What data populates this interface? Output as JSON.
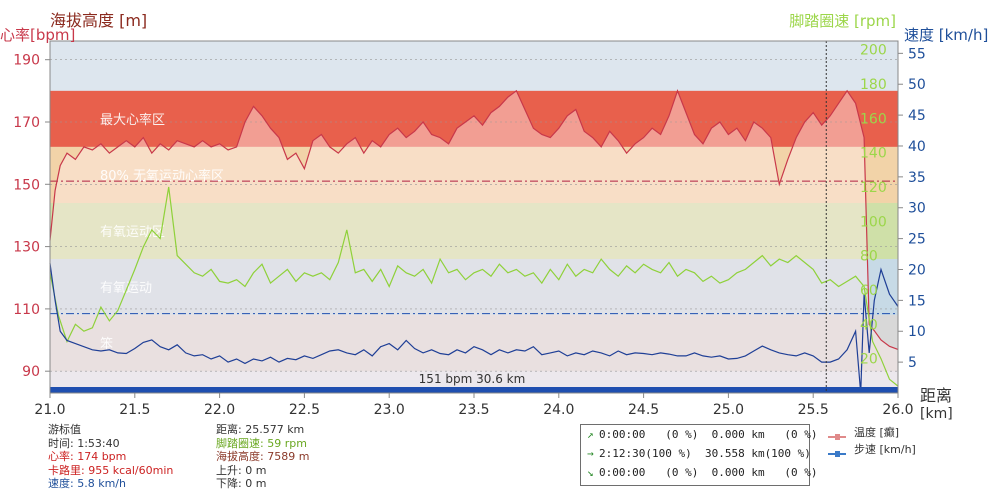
{
  "chart_data": {
    "type": "area",
    "axes": {
      "top_left_title": "海拔高度 [m]",
      "left_title": "心率[bpm]",
      "right_title_cadence": "脚踏圈速 [rpm]",
      "right_title_speed": "速度 [km/h]",
      "x_title": "距离",
      "x_unit": "[km]",
      "heart_rate_ticks": [
        "190",
        "170",
        "150",
        "130",
        "110",
        "90"
      ],
      "cadence_ticks": [
        "200",
        "180",
        "160",
        "140",
        "120",
        "100",
        "80",
        "60",
        "40",
        "20"
      ],
      "speed_ticks": [
        "55",
        "50",
        "45",
        "40",
        "35",
        "30",
        "25",
        "20",
        "15",
        "10",
        "5"
      ],
      "x_ticks": [
        "21.0",
        "21.5",
        "22.0",
        "22.5",
        "23.0",
        "23.5",
        "24.0",
        "24.5",
        "25.0",
        "25.5",
        "26.0"
      ],
      "x_range": [
        21.0,
        26.0
      ],
      "heart_rate_range": [
        83,
        196
      ],
      "cadence_range": [
        0,
        205
      ],
      "speed_range": [
        0,
        57
      ]
    },
    "zones": [
      {
        "label": "最大心率区",
        "from": 162,
        "to": 180,
        "color": "#e8604c"
      },
      {
        "label": "80% 无氧运动心率区",
        "from": 144,
        "to": 162,
        "color": "#f2d3a8"
      },
      {
        "label": "有氧运动区",
        "from": 126,
        "to": 144,
        "color": "#cfe0a8"
      },
      {
        "label": "有氧运动",
        "from": 108,
        "to": 126,
        "color": "#c7dae6"
      },
      {
        "label": "笨",
        "from": 90,
        "to": 108,
        "color": "#d8d8d8"
      }
    ],
    "heart_rate_line": 151,
    "heart_rate_line2": 108.5,
    "cursor_x": 25.577,
    "cursor_label": "151 bpm 30.6 km",
    "heart_rate": {
      "x": [
        21.0,
        21.03,
        21.06,
        21.1,
        21.15,
        21.2,
        21.25,
        21.3,
        21.35,
        21.4,
        21.45,
        21.5,
        21.55,
        21.6,
        21.65,
        21.7,
        21.75,
        21.8,
        21.85,
        21.9,
        21.95,
        22.0,
        22.05,
        22.1,
        22.15,
        22.2,
        22.25,
        22.3,
        22.35,
        22.4,
        22.45,
        22.5,
        22.55,
        22.6,
        22.65,
        22.7,
        22.75,
        22.8,
        22.85,
        22.9,
        22.95,
        23.0,
        23.05,
        23.1,
        23.15,
        23.2,
        23.25,
        23.3,
        23.35,
        23.4,
        23.45,
        23.5,
        23.55,
        23.6,
        23.65,
        23.7,
        23.75,
        23.8,
        23.85,
        23.9,
        23.95,
        24.0,
        24.05,
        24.1,
        24.15,
        24.2,
        24.25,
        24.3,
        24.35,
        24.4,
        24.45,
        24.5,
        24.55,
        24.6,
        24.65,
        24.7,
        24.75,
        24.8,
        24.85,
        24.9,
        24.95,
        25.0,
        25.05,
        25.1,
        25.15,
        25.2,
        25.25,
        25.3,
        25.35,
        25.4,
        25.45,
        25.5,
        25.55,
        25.6,
        25.65,
        25.7,
        25.75,
        25.8,
        25.83,
        25.86,
        25.9,
        25.95,
        26.0
      ],
      "values": [
        132,
        148,
        156,
        160,
        158,
        162,
        161,
        163,
        160,
        162,
        164,
        162,
        165,
        160,
        163,
        161,
        164,
        163,
        162,
        164,
        162,
        163,
        161,
        162,
        170,
        175,
        172,
        168,
        165,
        158,
        160,
        155,
        164,
        166,
        162,
        160,
        163,
        165,
        160,
        164,
        162,
        166,
        168,
        165,
        167,
        170,
        166,
        165,
        163,
        168,
        170,
        172,
        169,
        173,
        175,
        178,
        180,
        174,
        168,
        166,
        165,
        168,
        172,
        174,
        167,
        165,
        162,
        167,
        164,
        160,
        163,
        165,
        168,
        166,
        172,
        180,
        173,
        166,
        163,
        168,
        170,
        166,
        168,
        164,
        170,
        168,
        165,
        150,
        158,
        165,
        170,
        173,
        169,
        172,
        176,
        180,
        176,
        165,
        105,
        103,
        100,
        98,
        97
      ]
    },
    "cadence": {
      "x": [
        21.0,
        21.05,
        21.1,
        21.15,
        21.2,
        21.25,
        21.3,
        21.35,
        21.4,
        21.45,
        21.5,
        21.55,
        21.6,
        21.65,
        21.7,
        21.75,
        21.8,
        21.85,
        21.9,
        21.95,
        22.0,
        22.05,
        22.1,
        22.15,
        22.2,
        22.25,
        22.3,
        22.35,
        22.4,
        22.45,
        22.5,
        22.55,
        22.6,
        22.65,
        22.7,
        22.75,
        22.8,
        22.85,
        22.9,
        22.95,
        23.0,
        23.05,
        23.1,
        23.15,
        23.2,
        23.25,
        23.3,
        23.35,
        23.4,
        23.45,
        23.5,
        23.55,
        23.6,
        23.65,
        23.7,
        23.75,
        23.8,
        23.85,
        23.9,
        23.95,
        24.0,
        24.05,
        24.1,
        24.15,
        24.2,
        24.25,
        24.3,
        24.35,
        24.4,
        24.45,
        24.5,
        24.55,
        24.6,
        24.65,
        24.7,
        24.75,
        24.8,
        24.85,
        24.9,
        24.95,
        25.0,
        25.05,
        25.1,
        25.15,
        25.2,
        25.25,
        25.3,
        25.35,
        25.4,
        25.45,
        25.5,
        25.55,
        25.6,
        25.65,
        25.7,
        25.75,
        25.8,
        25.85,
        25.9,
        25.95,
        26.0
      ],
      "values": [
        70,
        45,
        30,
        40,
        36,
        38,
        50,
        42,
        48,
        60,
        72,
        85,
        95,
        90,
        120,
        80,
        75,
        70,
        68,
        72,
        65,
        64,
        66,
        62,
        70,
        75,
        64,
        68,
        72,
        65,
        70,
        68,
        70,
        66,
        76,
        95,
        70,
        72,
        65,
        72,
        62,
        74,
        70,
        68,
        72,
        64,
        78,
        70,
        72,
        66,
        70,
        72,
        68,
        75,
        70,
        72,
        68,
        70,
        64,
        72,
        66,
        75,
        68,
        72,
        70,
        78,
        72,
        68,
        74,
        70,
        75,
        72,
        70,
        76,
        68,
        72,
        70,
        65,
        68,
        64,
        66,
        70,
        72,
        76,
        80,
        74,
        78,
        76,
        80,
        76,
        72,
        64,
        66,
        62,
        65,
        68,
        62,
        30,
        20,
        8,
        4
      ]
    },
    "speed": {
      "x": [
        21.0,
        21.03,
        21.06,
        21.1,
        21.15,
        21.2,
        21.25,
        21.3,
        21.35,
        21.4,
        21.45,
        21.5,
        21.55,
        21.6,
        21.65,
        21.7,
        21.75,
        21.8,
        21.85,
        21.9,
        21.95,
        22.0,
        22.05,
        22.1,
        22.15,
        22.2,
        22.25,
        22.3,
        22.35,
        22.4,
        22.45,
        22.5,
        22.55,
        22.6,
        22.65,
        22.7,
        22.75,
        22.8,
        22.85,
        22.9,
        22.95,
        23.0,
        23.05,
        23.1,
        23.15,
        23.2,
        23.25,
        23.3,
        23.35,
        23.4,
        23.45,
        23.5,
        23.55,
        23.6,
        23.65,
        23.7,
        23.75,
        23.8,
        23.85,
        23.9,
        23.95,
        24.0,
        24.05,
        24.1,
        24.15,
        24.2,
        24.25,
        24.3,
        24.35,
        24.4,
        24.45,
        24.5,
        24.55,
        24.6,
        24.65,
        24.7,
        24.75,
        24.8,
        24.85,
        24.9,
        24.95,
        25.0,
        25.05,
        25.1,
        25.15,
        25.2,
        25.25,
        25.3,
        25.35,
        25.4,
        25.45,
        25.5,
        25.55,
        25.6,
        25.65,
        25.7,
        25.75,
        25.78,
        25.8,
        25.83,
        25.86,
        25.9,
        25.95,
        26.0
      ],
      "values": [
        21,
        15,
        10,
        8.5,
        8,
        7.5,
        7,
        6.8,
        7,
        6.5,
        6.4,
        7.2,
        8.2,
        8.6,
        7.5,
        7,
        7.8,
        6.5,
        6,
        6.2,
        5.5,
        6,
        5,
        5.5,
        4.8,
        5.5,
        5.2,
        5.8,
        5,
        5.6,
        5.4,
        6,
        5.6,
        6.2,
        6.8,
        7,
        6.5,
        6.2,
        7,
        6,
        7.5,
        8,
        7,
        8.5,
        7.2,
        6.5,
        7,
        6.4,
        6.2,
        7,
        6.5,
        7.5,
        7,
        6.2,
        7,
        6.5,
        7,
        6.8,
        7.5,
        6.2,
        6.5,
        6.8,
        6,
        6.5,
        6.2,
        6.8,
        6.5,
        6,
        6.8,
        6.2,
        6.5,
        6.4,
        6.2,
        6.5,
        6.3,
        6,
        6,
        6.5,
        6,
        5.8,
        6,
        5.5,
        5.6,
        6,
        6.8,
        7.6,
        7,
        6.5,
        6.2,
        6,
        6.5,
        6,
        5,
        5,
        5.5,
        7,
        10,
        0,
        16,
        6.5,
        15,
        20,
        16,
        14
      ]
    }
  },
  "info_panel": {
    "col1": [
      "游标值",
      "时间: 1:53:40",
      "心率: 174 bpm",
      "卡路里: 955 kcal/60min",
      "速度: 5.8 km/h"
    ],
    "col2": [
      "距离: 25.577 km",
      "脚踏圈速: 59 rpm",
      "海拔高度: 7589 m",
      "上升: 0 m",
      "下降: 0 m"
    ],
    "colors": {
      "heart": "#cc2222",
      "cadence": "#6aa821",
      "altitude": "#8b3a2a",
      "speed": "#1f4f9a",
      "default": "#333333"
    }
  },
  "summary": [
    {
      "arrow": "↗",
      "text": "0:00:00   (0 %)  0.000 km   (0 %)"
    },
    {
      "arrow": "→",
      "text": "2:12:30(100 %)  30.558 km(100 %)"
    },
    {
      "arrow": "↘",
      "text": "0:00:00   (0 %)  0.000 km   (0 %)"
    }
  ],
  "legend": [
    {
      "label": "温度 [癫]",
      "color": "#e08a8a"
    },
    {
      "label": "步速 [km/h]",
      "color": "#3a7ac8"
    }
  ]
}
